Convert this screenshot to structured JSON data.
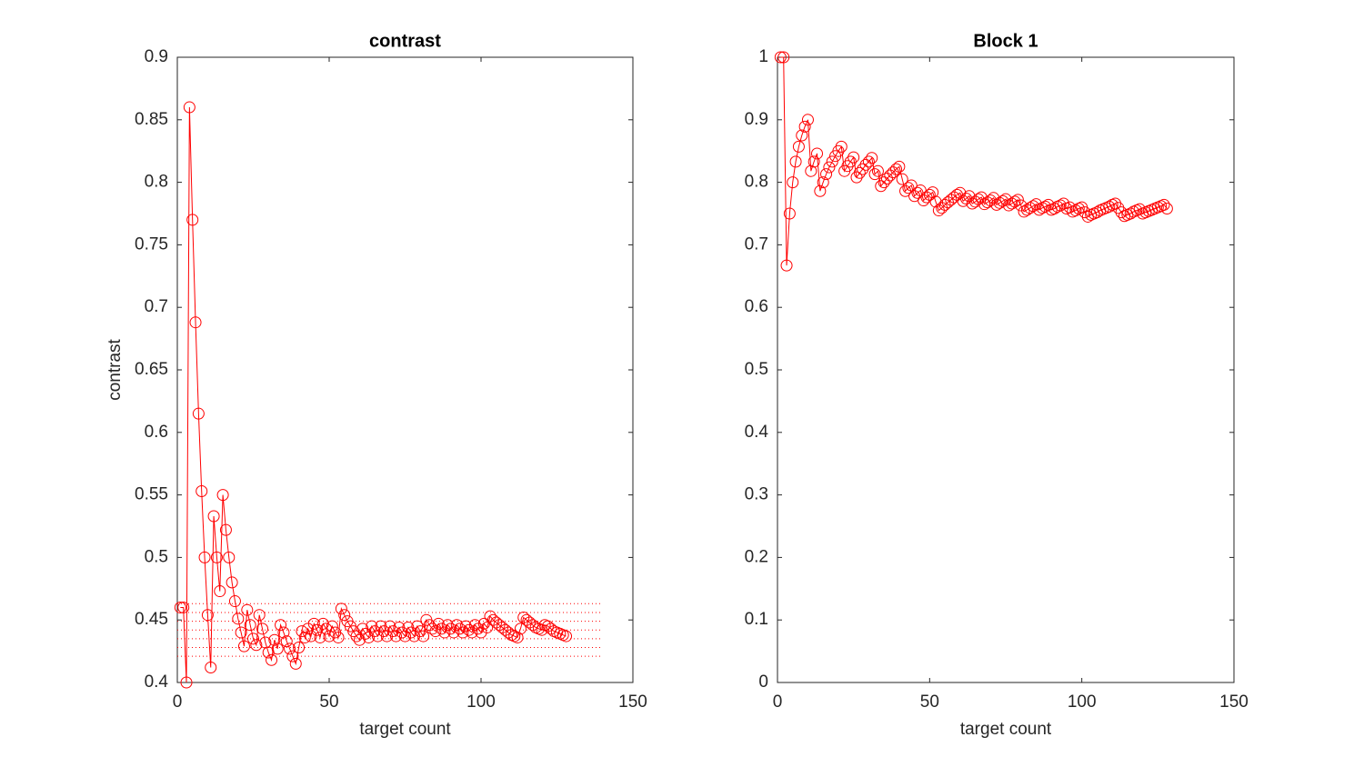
{
  "chart_data": [
    {
      "type": "line",
      "title": "contrast",
      "xlabel": "target count",
      "ylabel": "contrast",
      "color": "#ff0000",
      "marker": "circle",
      "x": [
        1,
        2,
        3,
        4,
        5,
        6,
        7,
        8,
        9,
        10,
        11,
        12,
        13,
        14,
        15,
        16,
        17,
        18,
        19,
        20,
        21,
        22,
        23,
        24,
        25,
        26,
        27,
        28,
        29,
        30,
        31,
        32,
        33,
        34,
        35,
        36,
        37,
        38,
        39,
        40,
        41,
        42,
        43,
        44,
        45,
        46,
        47,
        48,
        49,
        50,
        51,
        52,
        53,
        54,
        55,
        56,
        57,
        58,
        59,
        60,
        61,
        62,
        63,
        64,
        65,
        66,
        67,
        68,
        69,
        70,
        71,
        72,
        73,
        74,
        75,
        76,
        77,
        78,
        79,
        80,
        81,
        82,
        83,
        84,
        85,
        86,
        87,
        88,
        89,
        90,
        91,
        92,
        93,
        94,
        95,
        96,
        97,
        98,
        99,
        100,
        101,
        102,
        103,
        104,
        105,
        106,
        107,
        108,
        109,
        110,
        111,
        112,
        113,
        114,
        115,
        116,
        117,
        118,
        119,
        120,
        121,
        122,
        123,
        124,
        125,
        126,
        127,
        128
      ],
      "values": [
        0.46,
        0.46,
        0.4,
        0.86,
        0.77,
        0.688,
        0.615,
        0.553,
        0.5,
        0.454,
        0.412,
        0.533,
        0.5,
        0.473,
        0.55,
        0.522,
        0.5,
        0.48,
        0.465,
        0.451,
        0.44,
        0.429,
        0.458,
        0.446,
        0.435,
        0.43,
        0.454,
        0.443,
        0.432,
        0.424,
        0.418,
        0.434,
        0.427,
        0.446,
        0.44,
        0.433,
        0.427,
        0.421,
        0.415,
        0.428,
        0.441,
        0.436,
        0.443,
        0.437,
        0.447,
        0.442,
        0.436,
        0.447,
        0.443,
        0.437,
        0.445,
        0.44,
        0.436,
        0.459,
        0.454,
        0.449,
        0.445,
        0.441,
        0.437,
        0.434,
        0.443,
        0.439,
        0.436,
        0.445,
        0.441,
        0.437,
        0.445,
        0.441,
        0.437,
        0.445,
        0.441,
        0.437,
        0.444,
        0.44,
        0.437,
        0.444,
        0.44,
        0.437,
        0.445,
        0.441,
        0.437,
        0.45,
        0.446,
        0.443,
        0.441,
        0.447,
        0.443,
        0.44,
        0.446,
        0.443,
        0.44,
        0.446,
        0.443,
        0.44,
        0.445,
        0.442,
        0.44,
        0.446,
        0.443,
        0.44,
        0.447,
        0.444,
        0.453,
        0.45,
        0.448,
        0.446,
        0.444,
        0.442,
        0.44,
        0.438,
        0.437,
        0.436,
        0.443,
        0.452,
        0.45,
        0.448,
        0.446,
        0.444,
        0.443,
        0.442,
        0.446,
        0.445,
        0.443,
        0.441,
        0.44,
        0.439,
        0.438,
        0.437
      ],
      "hlines": [
        0.421,
        0.428,
        0.435,
        0.442,
        0.449,
        0.456,
        0.463
      ],
      "hline_x": [
        0,
        140
      ],
      "xlim": [
        0,
        150
      ],
      "ylim": [
        0.4,
        0.9
      ],
      "xticks": [
        0,
        50,
        100,
        150
      ],
      "yticks": [
        0.4,
        0.45,
        0.5,
        0.55,
        0.6,
        0.65,
        0.7,
        0.75,
        0.8,
        0.85,
        0.9
      ]
    },
    {
      "type": "line",
      "title": "Block 1",
      "xlabel": "target count",
      "color": "#ff0000",
      "marker": "circle",
      "x": [
        1,
        2,
        3,
        4,
        5,
        6,
        7,
        8,
        9,
        10,
        11,
        12,
        13,
        14,
        15,
        16,
        17,
        18,
        19,
        20,
        21,
        22,
        23,
        24,
        25,
        26,
        27,
        28,
        29,
        30,
        31,
        32,
        33,
        34,
        35,
        36,
        37,
        38,
        39,
        40,
        41,
        42,
        43,
        44,
        45,
        46,
        47,
        48,
        49,
        50,
        51,
        52,
        53,
        54,
        55,
        56,
        57,
        58,
        59,
        60,
        61,
        62,
        63,
        64,
        65,
        66,
        67,
        68,
        69,
        70,
        71,
        72,
        73,
        74,
        75,
        76,
        77,
        78,
        79,
        80,
        81,
        82,
        83,
        84,
        85,
        86,
        87,
        88,
        89,
        90,
        91,
        92,
        93,
        94,
        95,
        96,
        97,
        98,
        99,
        100,
        101,
        102,
        103,
        104,
        105,
        106,
        107,
        108,
        109,
        110,
        111,
        112,
        113,
        114,
        115,
        116,
        117,
        118,
        119,
        120,
        121,
        122,
        123,
        124,
        125,
        126,
        127,
        128
      ],
      "values": [
        1.0,
        1.0,
        0.667,
        0.75,
        0.8,
        0.833,
        0.857,
        0.875,
        0.889,
        0.9,
        0.818,
        0.833,
        0.846,
        0.786,
        0.8,
        0.813,
        0.824,
        0.833,
        0.842,
        0.85,
        0.857,
        0.818,
        0.826,
        0.833,
        0.84,
        0.808,
        0.815,
        0.821,
        0.828,
        0.833,
        0.839,
        0.813,
        0.818,
        0.794,
        0.8,
        0.806,
        0.811,
        0.816,
        0.821,
        0.825,
        0.805,
        0.786,
        0.791,
        0.795,
        0.778,
        0.783,
        0.787,
        0.771,
        0.776,
        0.78,
        0.784,
        0.769,
        0.755,
        0.759,
        0.764,
        0.768,
        0.772,
        0.776,
        0.78,
        0.783,
        0.77,
        0.774,
        0.778,
        0.766,
        0.769,
        0.773,
        0.776,
        0.765,
        0.768,
        0.771,
        0.775,
        0.764,
        0.767,
        0.77,
        0.773,
        0.763,
        0.766,
        0.769,
        0.772,
        0.763,
        0.753,
        0.756,
        0.759,
        0.762,
        0.765,
        0.756,
        0.759,
        0.761,
        0.764,
        0.756,
        0.758,
        0.761,
        0.763,
        0.766,
        0.758,
        0.76,
        0.753,
        0.755,
        0.758,
        0.76,
        0.752,
        0.745,
        0.748,
        0.75,
        0.752,
        0.755,
        0.757,
        0.759,
        0.761,
        0.764,
        0.766,
        0.759,
        0.752,
        0.746,
        0.748,
        0.75,
        0.753,
        0.755,
        0.757,
        0.75,
        0.752,
        0.754,
        0.756,
        0.758,
        0.76,
        0.762,
        0.764,
        0.758
      ],
      "xlim": [
        0,
        150
      ],
      "ylim": [
        0,
        1
      ],
      "xticks": [
        0,
        50,
        100,
        150
      ],
      "yticks": [
        0,
        0.1,
        0.2,
        0.3,
        0.4,
        0.5,
        0.6,
        0.7,
        0.8,
        0.9,
        1
      ]
    }
  ]
}
